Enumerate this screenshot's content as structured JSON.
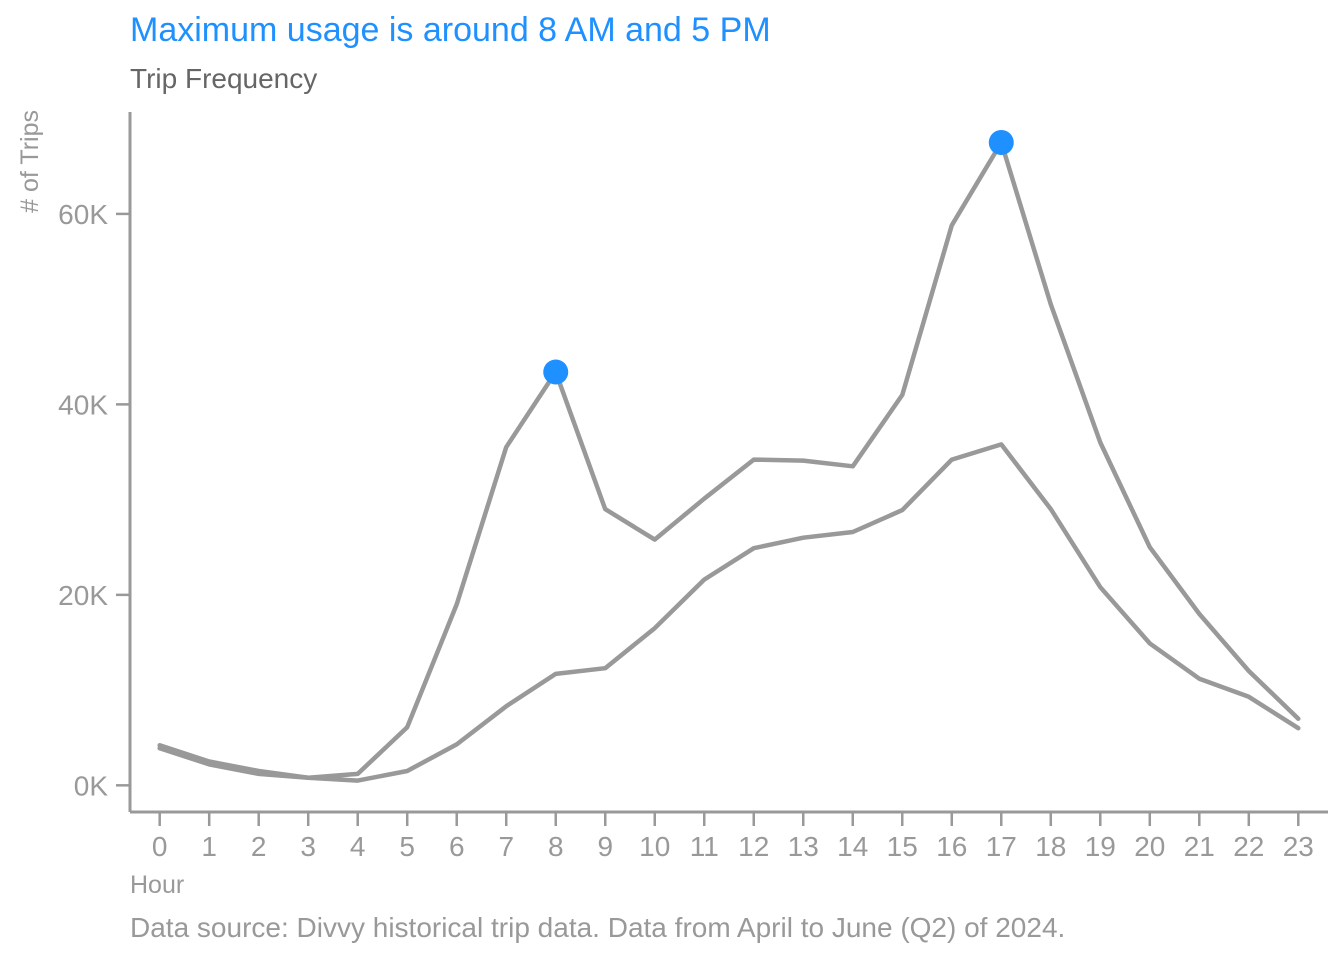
{
  "colors": {
    "accent": "#1e90ff",
    "line": "#999999",
    "subtitle": "#666666",
    "axis": "#999999"
  },
  "chart_data": {
    "type": "line",
    "title": "Maximum usage is around 8 AM and 5 PM",
    "subtitle": "Trip Frequency",
    "xlabel": "Hour",
    "ylabel": "# of Trips",
    "caption": "Data source: Divvy historical trip data. Data from April to June (Q2) of 2024.",
    "x": [
      0,
      1,
      2,
      3,
      4,
      5,
      6,
      7,
      8,
      9,
      10,
      11,
      12,
      13,
      14,
      15,
      16,
      17,
      18,
      19,
      20,
      21,
      22,
      23
    ],
    "x_tick_labels": [
      "0",
      "1",
      "2",
      "3",
      "4",
      "5",
      "6",
      "7",
      "8",
      "9",
      "10",
      "11",
      "12",
      "13",
      "14",
      "15",
      "16",
      "17",
      "18",
      "19",
      "20",
      "21",
      "22",
      "23"
    ],
    "y_ticks": [
      0,
      20000,
      40000,
      60000
    ],
    "y_tick_labels": [
      "0K",
      "20K",
      "40K",
      "60K"
    ],
    "xlim": [
      -0.6,
      23.6
    ],
    "ylim": [
      -2800,
      70700
    ],
    "grid": false,
    "legend": "none",
    "series": [
      {
        "values": [
          4200,
          2500,
          1500,
          800,
          1200,
          6100,
          19000,
          35500,
          43400,
          29000,
          25800,
          30100,
          34200,
          34100,
          33500,
          41000,
          58800,
          67500,
          50500,
          36000,
          25000,
          18000,
          12000,
          7000
        ]
      },
      {
        "values": [
          3900,
          2200,
          1200,
          800,
          500,
          1500,
          4300,
          8300,
          11700,
          12300,
          16500,
          21600,
          24900,
          26000,
          26600,
          28900,
          34200,
          35800,
          29000,
          20800,
          14900,
          11200,
          9300,
          6000
        ]
      }
    ],
    "highlights": [
      {
        "x": 8,
        "y": 43400
      },
      {
        "x": 17,
        "y": 67500
      }
    ]
  }
}
